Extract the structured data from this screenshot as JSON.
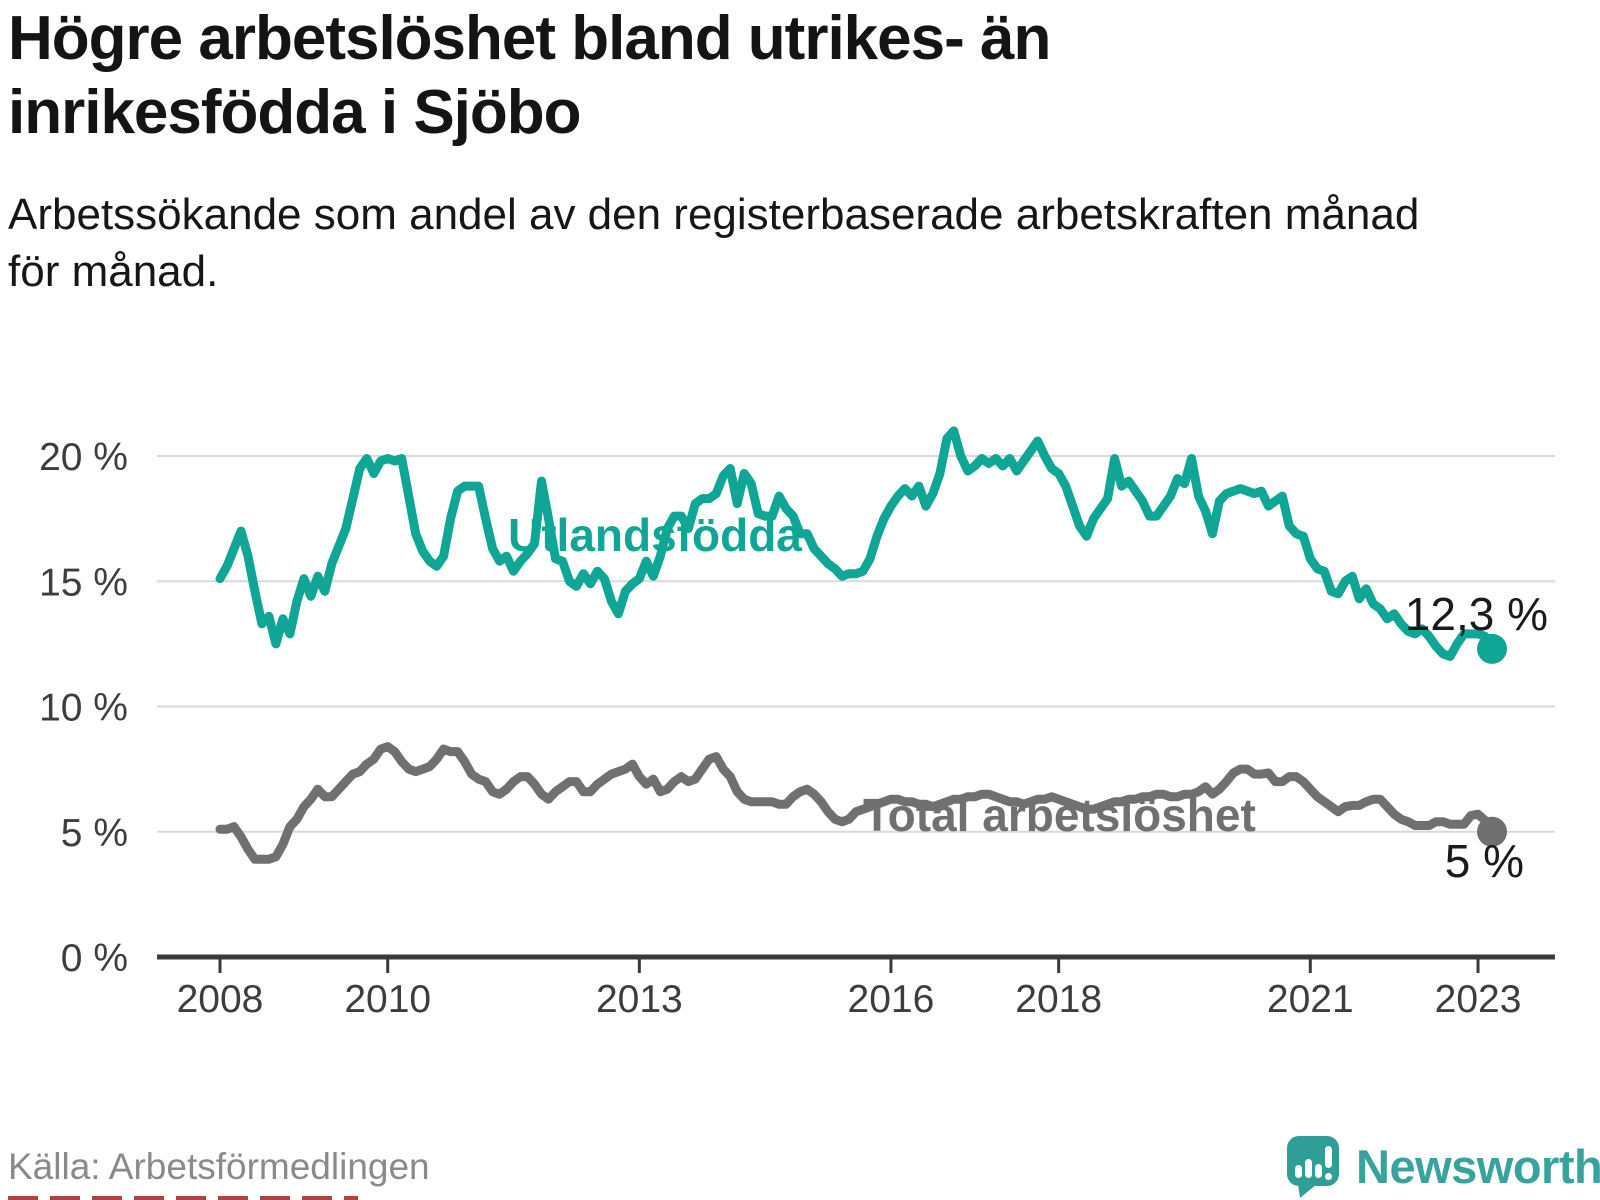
{
  "header": {
    "title": "Högre arbetslöshet bland utrikes- än\ninrikesfödda i Sjöbo",
    "subtitle": "Arbetssökande som andel av den registerbaserade arbetskraften månad\nför månad."
  },
  "source": {
    "label": "Källa: Arbetsförmedlingen"
  },
  "branding": {
    "name": "Newsworthy",
    "logo_icon": "speech-bubble-bar-chart-exclamation",
    "color": "#38a39c"
  },
  "chart_data": {
    "type": "line",
    "title": "Högre arbetslöshet bland utrikes- än inrikesfödda i Sjöbo",
    "xlabel": "",
    "ylabel": "",
    "x_start": "2008-01",
    "x_end": "2023-03",
    "x_frequency": "monthly",
    "ylim": [
      0,
      22
    ],
    "grid": true,
    "legend_position": "inline-labels",
    "y_ticks": [
      {
        "value": 0,
        "label": "0 %"
      },
      {
        "value": 5,
        "label": "5 %"
      },
      {
        "value": 10,
        "label": "10 %"
      },
      {
        "value": 15,
        "label": "15 %"
      },
      {
        "value": 20,
        "label": "20 %"
      }
    ],
    "x_ticks": [
      {
        "year": 2008,
        "label": "2008"
      },
      {
        "year": 2010,
        "label": "2010"
      },
      {
        "year": 2013,
        "label": "2013"
      },
      {
        "year": 2016,
        "label": "2016"
      },
      {
        "year": 2018,
        "label": "2018"
      },
      {
        "year": 2021,
        "label": "2021"
      },
      {
        "year": 2023,
        "label": "2023"
      }
    ],
    "series": [
      {
        "name": "Utlandsfödda",
        "color": "#0FA696",
        "end_label": "12,3 %",
        "end_value": 12.3,
        "values": [
          15.1,
          15.6,
          16.3,
          17.0,
          16.0,
          14.6,
          13.3,
          13.6,
          12.5,
          13.5,
          12.9,
          14.2,
          15.1,
          14.4,
          15.2,
          14.6,
          15.7,
          16.4,
          17.1,
          18.3,
          19.5,
          19.9,
          19.3,
          19.8,
          19.9,
          19.8,
          19.9,
          18.4,
          16.9,
          16.2,
          15.8,
          15.6,
          16.0,
          17.5,
          18.6,
          18.8,
          18.8,
          18.8,
          17.5,
          16.3,
          15.8,
          16.0,
          15.4,
          15.8,
          16.1,
          16.5,
          19.0,
          17.5,
          15.9,
          15.8,
          15.0,
          14.8,
          15.3,
          14.9,
          15.4,
          15.1,
          14.2,
          13.7,
          14.6,
          14.9,
          15.1,
          15.8,
          15.2,
          16.0,
          17.1,
          17.6,
          17.6,
          17.1,
          18.1,
          18.3,
          18.3,
          18.5,
          19.2,
          19.5,
          18.1,
          19.3,
          18.9,
          17.7,
          17.6,
          17.6,
          18.4,
          17.9,
          17.6,
          16.9,
          16.9,
          16.3,
          16.0,
          15.7,
          15.5,
          15.2,
          15.3,
          15.3,
          15.4,
          15.9,
          16.8,
          17.5,
          18.0,
          18.4,
          18.7,
          18.4,
          18.8,
          18.0,
          18.5,
          19.3,
          20.7,
          21.0,
          20.0,
          19.4,
          19.6,
          19.9,
          19.7,
          19.9,
          19.6,
          19.9,
          19.4,
          19.8,
          20.2,
          20.6,
          20.0,
          19.5,
          19.3,
          18.8,
          18.0,
          17.2,
          16.8,
          17.5,
          17.9,
          18.3,
          19.9,
          18.8,
          19.0,
          18.6,
          18.2,
          17.6,
          17.6,
          18.0,
          18.4,
          19.1,
          18.9,
          19.9,
          18.4,
          17.8,
          16.9,
          18.2,
          18.5,
          18.6,
          18.7,
          18.6,
          18.5,
          18.6,
          18.0,
          18.2,
          18.4,
          17.2,
          16.9,
          16.8,
          15.9,
          15.5,
          15.4,
          14.6,
          14.5,
          15.0,
          15.2,
          14.3,
          14.7,
          14.1,
          13.9,
          13.5,
          13.7,
          13.3,
          13.0,
          12.9,
          13.1,
          12.8,
          12.4,
          12.1,
          12.0,
          12.5,
          12.9,
          12.9,
          12.9,
          12.8,
          12.3
        ]
      },
      {
        "name": "Total arbetslöshet",
        "color": "#707072",
        "end_label": "5 %",
        "end_value": 5.0,
        "values": [
          5.1,
          5.1,
          5.2,
          4.8,
          4.3,
          3.9,
          3.9,
          3.9,
          4.0,
          4.5,
          5.2,
          5.5,
          6.0,
          6.3,
          6.7,
          6.4,
          6.4,
          6.7,
          7.0,
          7.3,
          7.4,
          7.7,
          7.9,
          8.3,
          8.4,
          8.2,
          7.8,
          7.5,
          7.4,
          7.5,
          7.6,
          7.9,
          8.3,
          8.2,
          8.2,
          7.8,
          7.3,
          7.1,
          7.0,
          6.6,
          6.5,
          6.7,
          7.0,
          7.2,
          7.2,
          6.9,
          6.5,
          6.3,
          6.6,
          6.8,
          7.0,
          7.0,
          6.6,
          6.6,
          6.9,
          7.1,
          7.3,
          7.4,
          7.5,
          7.7,
          7.2,
          6.9,
          7.1,
          6.6,
          6.7,
          7.0,
          7.2,
          7.0,
          7.1,
          7.5,
          7.9,
          8.0,
          7.5,
          7.2,
          6.6,
          6.3,
          6.2,
          6.2,
          6.2,
          6.2,
          6.1,
          6.1,
          6.4,
          6.6,
          6.7,
          6.5,
          6.2,
          5.8,
          5.5,
          5.4,
          5.5,
          5.8,
          5.9,
          6.0,
          6.1,
          6.2,
          6.3,
          6.3,
          6.2,
          6.2,
          6.1,
          6.1,
          6.0,
          6.1,
          6.2,
          6.3,
          6.3,
          6.4,
          6.4,
          6.5,
          6.5,
          6.4,
          6.3,
          6.2,
          6.2,
          6.1,
          6.2,
          6.3,
          6.3,
          6.4,
          6.3,
          6.2,
          6.1,
          6.0,
          5.9,
          5.9,
          6.0,
          6.1,
          6.2,
          6.2,
          6.3,
          6.3,
          6.4,
          6.4,
          6.5,
          6.5,
          6.4,
          6.4,
          6.5,
          6.5,
          6.6,
          6.8,
          6.5,
          6.7,
          7.0,
          7.35,
          7.5,
          7.5,
          7.3,
          7.3,
          7.35,
          7.0,
          7.0,
          7.2,
          7.2,
          7.0,
          6.7,
          6.4,
          6.2,
          6.0,
          5.8,
          6.0,
          6.05,
          6.05,
          6.2,
          6.3,
          6.3,
          6.0,
          5.7,
          5.5,
          5.4,
          5.25,
          5.25,
          5.25,
          5.4,
          5.4,
          5.3,
          5.3,
          5.3,
          5.65,
          5.7,
          5.45,
          5.0
        ]
      }
    ]
  }
}
